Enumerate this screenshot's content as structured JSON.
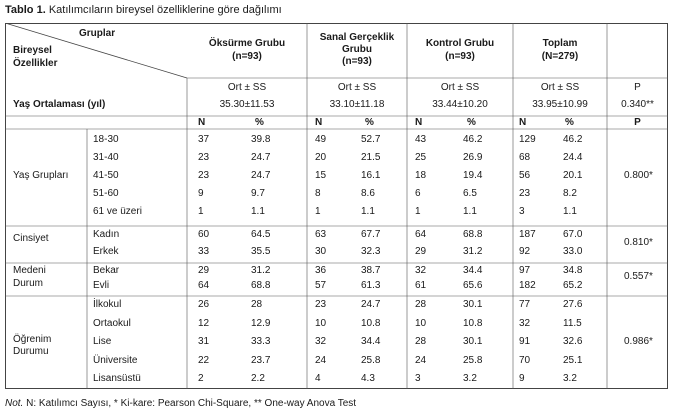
{
  "caption": {
    "label": "Tablo 1.",
    "text": "Katılımcıların bireysel özelliklerine göre dağılımı"
  },
  "header": {
    "gruplar": "Gruplar",
    "bireysel": "Bireysel",
    "ozellikler": "Özellikler",
    "groups": [
      {
        "name": "Öksürme Grubu",
        "n": "(n=93)"
      },
      {
        "name_line1": "Sanal Gerçeklik",
        "name_line2": "Grubu",
        "n": "(n=93)"
      },
      {
        "name": "Kontrol Grubu",
        "n": "(n=93)"
      },
      {
        "name": "Toplam",
        "n": "(N=279)"
      }
    ],
    "ort_ss": "Ort ± SS",
    "p": "P"
  },
  "age_mean": {
    "label": "Yaş Ortalaması (yıl)",
    "values": [
      "35.30±11.53",
      "33.10±11.18",
      "33.44±10.20",
      "33.95±10.99"
    ],
    "p": "0.340**"
  },
  "subheader": {
    "n": "N",
    "pct": "%",
    "p": "P"
  },
  "sections": [
    {
      "label": "Yaş Grupları",
      "p": "0.800*",
      "rows": [
        {
          "cat": "18-30",
          "vals": [
            "37",
            "39.8",
            "49",
            "52.7",
            "43",
            "46.2",
            "129",
            "46.2"
          ]
        },
        {
          "cat": "31-40",
          "vals": [
            "23",
            "24.7",
            "20",
            "21.5",
            "25",
            "26.9",
            "68",
            "24.4"
          ]
        },
        {
          "cat": "41-50",
          "vals": [
            "23",
            "24.7",
            "15",
            "16.1",
            "18",
            "19.4",
            "56",
            "20.1"
          ]
        },
        {
          "cat": "51-60",
          "vals": [
            "9",
            "9.7",
            "8",
            "8.6",
            "6",
            "6.5",
            "23",
            "8.2"
          ]
        },
        {
          "cat": "61 ve üzeri",
          "vals": [
            "1",
            "1.1",
            "1",
            "1.1",
            "1",
            "1.1",
            "3",
            "1.1"
          ]
        }
      ]
    },
    {
      "label": "Cinsiyet",
      "p": "0.810*",
      "rows": [
        {
          "cat": "Kadın",
          "vals": [
            "60",
            "64.5",
            "63",
            "67.7",
            "64",
            "68.8",
            "187",
            "67.0"
          ]
        },
        {
          "cat": "Erkek",
          "vals": [
            "33",
            "35.5",
            "30",
            "32.3",
            "29",
            "31.2",
            "92",
            "33.0"
          ]
        }
      ]
    },
    {
      "label_line1": "Medeni",
      "label_line2": "Durum",
      "p": "0.557*",
      "rows": [
        {
          "cat": "Bekar",
          "vals": [
            "29",
            "31.2",
            "36",
            "38.7",
            "32",
            "34.4",
            "97",
            "34.8"
          ]
        },
        {
          "cat": "Evli",
          "vals": [
            "64",
            "68.8",
            "57",
            "61.3",
            "61",
            "65.6",
            "182",
            "65.2"
          ]
        }
      ]
    },
    {
      "label_line1": "Öğrenim",
      "label_line2": "Durumu",
      "p": "0.986*",
      "rows": [
        {
          "cat": "İlkokul",
          "vals": [
            "26",
            "28",
            "23",
            "24.7",
            "28",
            "30.1",
            "77",
            "27.6"
          ]
        },
        {
          "cat": "Ortaokul",
          "vals": [
            "12",
            "12.9",
            "10",
            "10.8",
            "10",
            "10.8",
            "32",
            "11.5"
          ]
        },
        {
          "cat": "Lise",
          "vals": [
            "31",
            "33.3",
            "32",
            "34.4",
            "28",
            "30.1",
            "91",
            "32.6"
          ]
        },
        {
          "cat": "Üniversite",
          "vals": [
            "22",
            "23.7",
            "24",
            "25.8",
            "24",
            "25.8",
            "70",
            "25.1"
          ]
        },
        {
          "cat": "Lisansüstü",
          "vals": [
            "2",
            "2.2",
            "4",
            "4.3",
            "3",
            "3.2",
            "9",
            "3.2"
          ]
        }
      ]
    }
  ],
  "note": {
    "label": "Not.",
    "text": "N: Katılımcı Sayısı, * Ki-kare: Pearson Chi-Square, ** One-way Anova Test"
  }
}
